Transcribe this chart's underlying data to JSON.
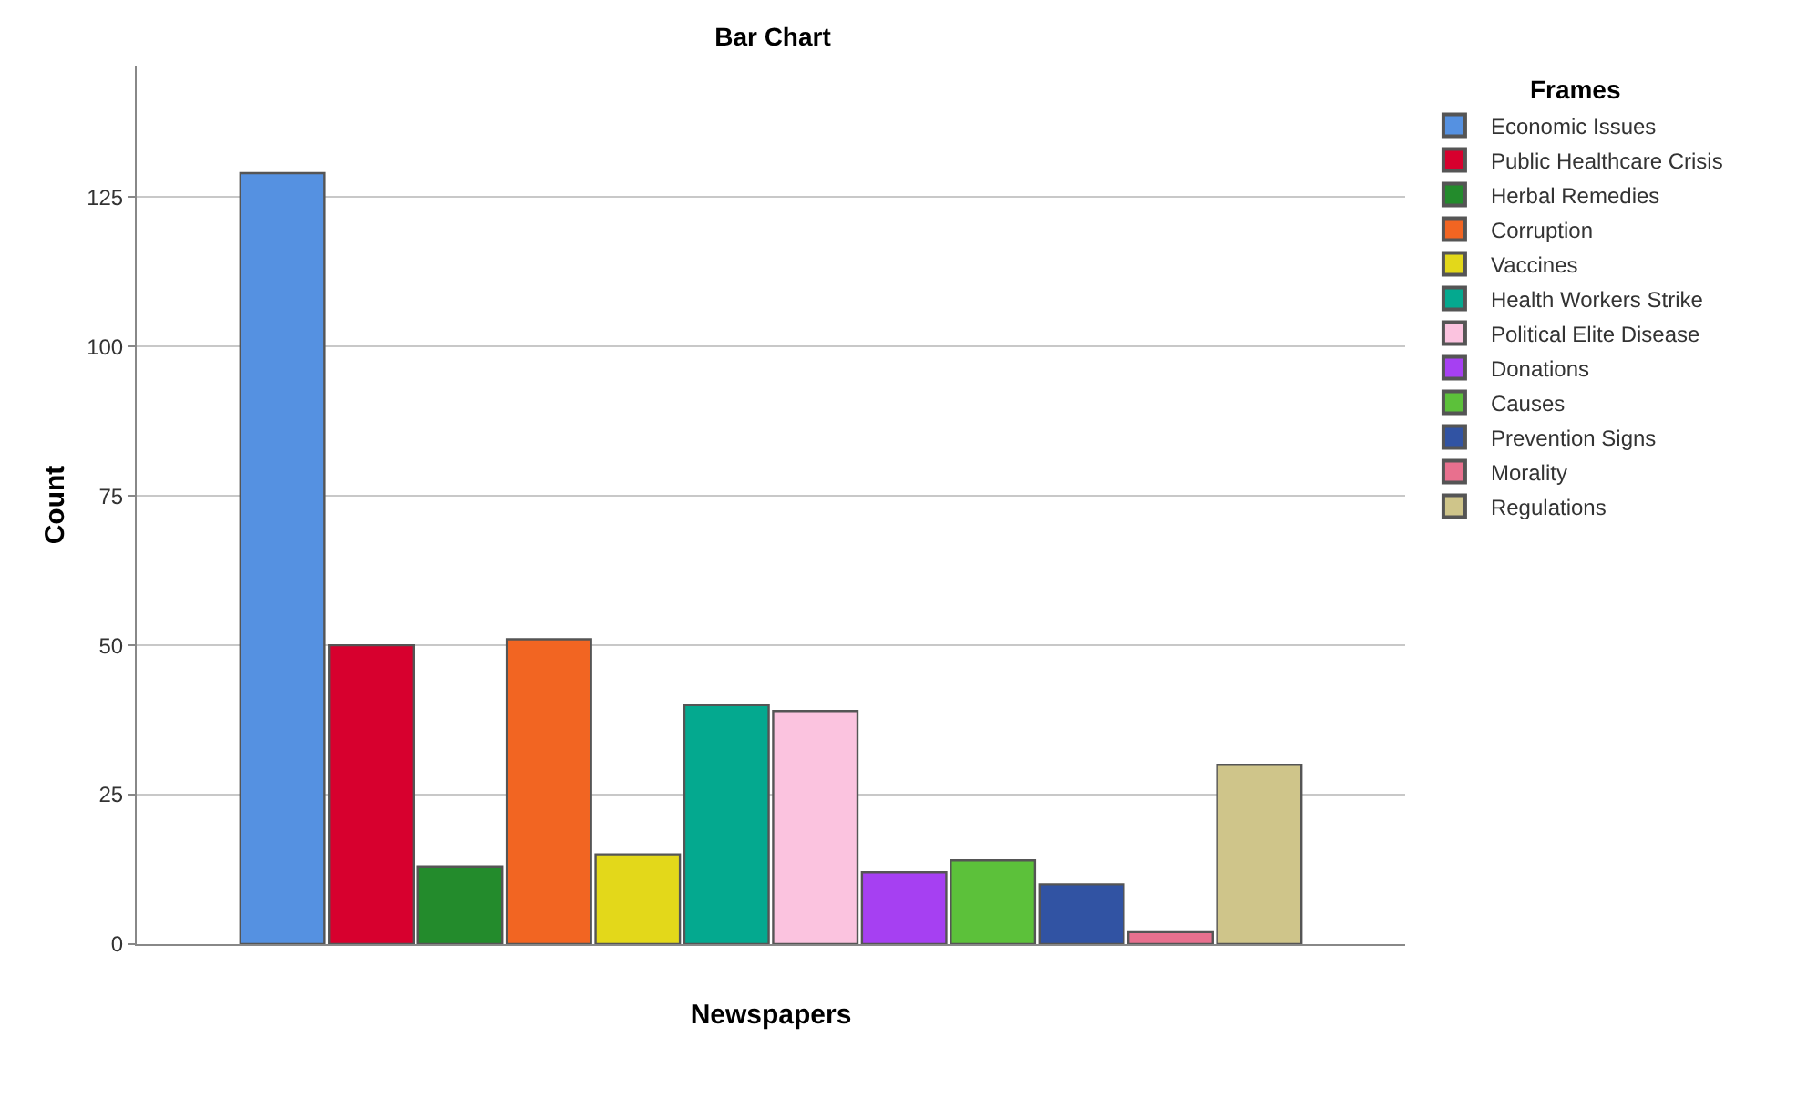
{
  "chart_data": {
    "type": "bar",
    "title": "Bar Chart",
    "xlabel": "Newspapers",
    "ylabel": "Count",
    "legend_title": "Frames",
    "categories": [
      null
    ],
    "series": [
      {
        "name": "Economic Issues",
        "color": "#5591e1",
        "values": [
          129
        ]
      },
      {
        "name": "Public Healthcare Crisis",
        "color": "#d7002e",
        "values": [
          50
        ]
      },
      {
        "name": "Herbal Remedies",
        "color": "#238b2c",
        "values": [
          13
        ]
      },
      {
        "name": "Corruption",
        "color": "#f26522",
        "values": [
          51
        ]
      },
      {
        "name": "Vaccines",
        "color": "#e3d81a",
        "values": [
          15
        ]
      },
      {
        "name": "Health Workers Strike",
        "color": "#04a98f",
        "values": [
          40
        ]
      },
      {
        "name": "Political Elite Disease",
        "color": "#fbc3df",
        "values": [
          39
        ]
      },
      {
        "name": "Donations",
        "color": "#a640f2",
        "values": [
          12
        ]
      },
      {
        "name": "Causes",
        "color": "#5cc13a",
        "values": [
          14
        ]
      },
      {
        "name": "Prevention Signs",
        "color": "#3153a3",
        "values": [
          10
        ]
      },
      {
        "name": "Morality",
        "color": "#e8708e",
        "values": [
          2
        ]
      },
      {
        "name": "Regulations",
        "color": "#cfc58a",
        "values": [
          30
        ]
      }
    ],
    "ylim": [
      0,
      147
    ],
    "yticks": [
      0,
      25,
      50,
      75,
      100,
      125
    ],
    "grid": "y",
    "legend": "top right"
  }
}
